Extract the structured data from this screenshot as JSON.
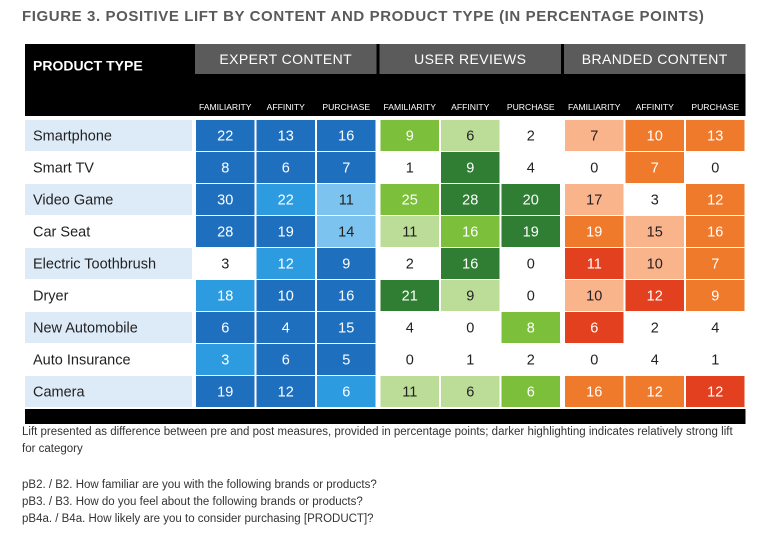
{
  "title": "FIGURE 3. POSITIVE LIFT BY CONTENT AND PRODUCT TYPE (IN PERCENTAGE POINTS)",
  "colors": {
    "group_header_bg": "#5b5b5b",
    "sub_header_bg": "#000000",
    "row_band": "#dcebf7",
    "expert": [
      "#d6eaf8",
      "#7cc4ef",
      "#2d9be0",
      "#1f6fbf"
    ],
    "reviews": [
      "#dff0c6",
      "#bcdd98",
      "#7cbf3a",
      "#2f7e33"
    ],
    "branded": [
      "#fde6d6",
      "#f9b48c",
      "#f07a2c",
      "#e2401f"
    ]
  },
  "chart_data": {
    "type": "heatmap",
    "row_header": "PRODUCT TYPE",
    "groups": [
      {
        "name": "EXPERT CONTENT",
        "metrics": [
          "FAMILIARITY",
          "AFFINITY",
          "PURCHASE"
        ],
        "palette": "expert"
      },
      {
        "name": "USER REVIEWS",
        "metrics": [
          "FAMILIARITY",
          "AFFINITY",
          "PURCHASE"
        ],
        "palette": "reviews"
      },
      {
        "name": "BRANDED CONTENT",
        "metrics": [
          "FAMILIARITY",
          "AFFINITY",
          "PURCHASE"
        ],
        "palette": "branded"
      }
    ],
    "rows": [
      {
        "label": "Smartphone",
        "values": [
          22,
          13,
          16,
          9,
          6,
          2,
          7,
          10,
          13
        ],
        "shade": [
          3,
          3,
          3,
          2,
          1,
          0,
          1,
          2,
          2
        ]
      },
      {
        "label": "Smart TV",
        "values": [
          8,
          6,
          7,
          1,
          9,
          4,
          0,
          7,
          0
        ],
        "shade": [
          3,
          3,
          3,
          0,
          3,
          0,
          0,
          2,
          0
        ]
      },
      {
        "label": "Video Game",
        "values": [
          30,
          22,
          11,
          25,
          28,
          20,
          17,
          3,
          12
        ],
        "shade": [
          3,
          2,
          1,
          2,
          3,
          3,
          1,
          0,
          2
        ]
      },
      {
        "label": "Car Seat",
        "values": [
          28,
          19,
          14,
          11,
          16,
          19,
          19,
          15,
          16
        ],
        "shade": [
          3,
          3,
          1,
          1,
          2,
          3,
          2,
          1,
          2
        ]
      },
      {
        "label": "Electric Toothbrush",
        "values": [
          3,
          12,
          9,
          2,
          16,
          0,
          11,
          10,
          7
        ],
        "shade": [
          0,
          2,
          3,
          0,
          3,
          0,
          3,
          1,
          2
        ]
      },
      {
        "label": "Dryer",
        "values": [
          18,
          10,
          16,
          21,
          9,
          0,
          10,
          12,
          9
        ],
        "shade": [
          2,
          3,
          3,
          3,
          1,
          0,
          1,
          3,
          2
        ]
      },
      {
        "label": "New Automobile",
        "values": [
          6,
          4,
          15,
          4,
          0,
          8,
          6,
          2,
          4
        ],
        "shade": [
          3,
          3,
          3,
          0,
          0,
          2,
          3,
          0,
          0
        ]
      },
      {
        "label": "Auto Insurance",
        "values": [
          3,
          6,
          5,
          0,
          1,
          2,
          0,
          4,
          1
        ],
        "shade": [
          2,
          3,
          3,
          0,
          0,
          0,
          0,
          0,
          0
        ]
      },
      {
        "label": "Camera",
        "values": [
          19,
          12,
          6,
          11,
          6,
          6,
          16,
          12,
          12
        ],
        "shade": [
          3,
          3,
          2,
          1,
          1,
          2,
          2,
          2,
          3
        ]
      }
    ]
  },
  "footnote": "Lift presented as difference between pre and post measures, provided in percentage points; darker highlighting indicates relatively strong lift for category",
  "questions": [
    "pB2. / B2. How familiar are you with the following brands or products?",
    "pB3. / B3. How do you feel about the following brands or products?",
    "pB4a. / B4a. How likely are you to consider purchasing [PRODUCT]?"
  ]
}
